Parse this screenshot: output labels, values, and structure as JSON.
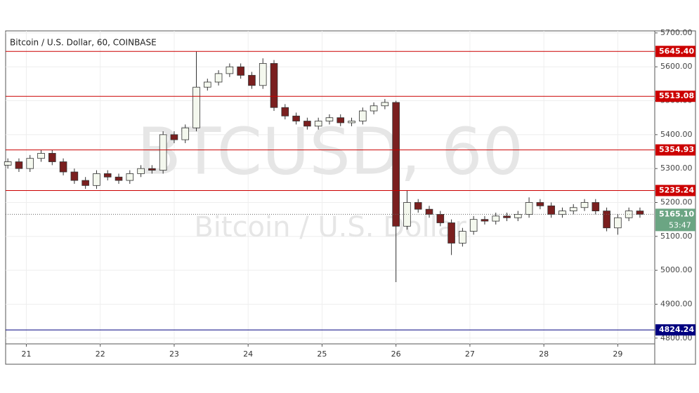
{
  "chart_data": {
    "type": "candlestick",
    "title": "Bitcoin / U.S. Dollar, 60, COINBASE",
    "watermark": "BTCUSD, 60",
    "watermark_sub": "Bitcoin / U.S. Dollar",
    "x": [
      20.75,
      20.9,
      21.05,
      21.2,
      21.35,
      21.5,
      21.65,
      21.8,
      21.95,
      22.1,
      22.25,
      22.4,
      22.55,
      22.7,
      22.85,
      23,
      23.15,
      23.3,
      23.45,
      23.6,
      23.75,
      23.9,
      24.05,
      24.2,
      24.35,
      24.5,
      24.65,
      24.8,
      24.95,
      25.1,
      25.25,
      25.4,
      25.55,
      25.7,
      25.85,
      26,
      26.15,
      26.3,
      26.45,
      26.6,
      26.75,
      26.9,
      27.05,
      27.2,
      27.35,
      27.5,
      27.65,
      27.8,
      27.95,
      28.1,
      28.25,
      28.4,
      28.55,
      28.7,
      28.85,
      29,
      29.15,
      29.3
    ],
    "open": [
      5310,
      5320,
      5300,
      5330,
      5345,
      5320,
      5290,
      5265,
      5250,
      5285,
      5275,
      5265,
      5285,
      5300,
      5295,
      5400,
      5385,
      5420,
      5540,
      5555,
      5580,
      5600,
      5575,
      5545,
      5610,
      5480,
      5455,
      5440,
      5425,
      5440,
      5450,
      5435,
      5440,
      5470,
      5485,
      5495,
      5130,
      5200,
      5180,
      5165,
      5140,
      5080,
      5115,
      5150,
      5145,
      5160,
      5155,
      5165,
      5200,
      5190,
      5165,
      5175,
      5185,
      5200,
      5175,
      5125,
      5155,
      5175
    ],
    "high": [
      5330,
      5330,
      5340,
      5355,
      5355,
      5330,
      5300,
      5275,
      5295,
      5295,
      5285,
      5295,
      5310,
      5310,
      5410,
      5410,
      5430,
      5645,
      5565,
      5590,
      5610,
      5610,
      5585,
      5625,
      5620,
      5490,
      5465,
      5450,
      5450,
      5460,
      5460,
      5450,
      5480,
      5495,
      5505,
      5500,
      5235,
      5210,
      5190,
      5175,
      5150,
      5125,
      5160,
      5160,
      5170,
      5170,
      5175,
      5215,
      5210,
      5200,
      5185,
      5195,
      5210,
      5210,
      5185,
      5165,
      5185,
      5185
    ],
    "low": [
      5300,
      5290,
      5290,
      5320,
      5310,
      5280,
      5255,
      5240,
      5240,
      5265,
      5255,
      5255,
      5275,
      5285,
      5285,
      5375,
      5375,
      5410,
      5530,
      5545,
      5570,
      5565,
      5535,
      5535,
      5470,
      5445,
      5430,
      5415,
      5415,
      5430,
      5425,
      5425,
      5430,
      5460,
      5475,
      4965,
      5120,
      5170,
      5155,
      5130,
      5045,
      5070,
      5105,
      5135,
      5135,
      5145,
      5145,
      5155,
      5180,
      5155,
      5155,
      5165,
      5175,
      5165,
      5115,
      5105,
      5145,
      5155
    ],
    "close": [
      5320,
      5300,
      5330,
      5345,
      5320,
      5290,
      5265,
      5250,
      5285,
      5275,
      5265,
      5285,
      5300,
      5295,
      5400,
      5385,
      5420,
      5540,
      5555,
      5580,
      5600,
      5575,
      5545,
      5610,
      5480,
      5455,
      5440,
      5425,
      5440,
      5450,
      5435,
      5440,
      5470,
      5485,
      5495,
      5130,
      5200,
      5180,
      5165,
      5140,
      5080,
      5115,
      5150,
      5145,
      5160,
      5155,
      5165,
      5200,
      5190,
      5165,
      5175,
      5185,
      5200,
      5175,
      5125,
      5155,
      5175,
      5165.1
    ],
    "up_color": "#f4f8ee",
    "down_color": "#7a1f1f",
    "wick_color": "#333333",
    "xlim": [
      20.72,
      29.5
    ],
    "xticks": [
      21,
      22,
      23,
      24,
      25,
      26,
      27,
      28,
      29
    ],
    "ylim": [
      4783,
      5706
    ],
    "yticks": [
      {
        "value": 4800,
        "label": "4800.00"
      },
      {
        "value": 4900,
        "label": "4900.00"
      },
      {
        "value": 5000,
        "label": "5000.00"
      },
      {
        "value": 5100,
        "label": "5100.00"
      },
      {
        "value": 5200,
        "label": "5200.00"
      },
      {
        "value": 5300,
        "label": "5300.00"
      },
      {
        "value": 5400,
        "label": "5400.00"
      },
      {
        "value": 5500,
        "label": "5500.00"
      },
      {
        "value": 5600,
        "label": "5600.00"
      },
      {
        "value": 5700,
        "label": "5700.00"
      }
    ],
    "grid": true,
    "hlines": [
      {
        "value": 5645.4,
        "label": "5645.40",
        "color": "#cc0000"
      },
      {
        "value": 5513.08,
        "label": "5513.08",
        "color": "#cc0000"
      },
      {
        "value": 5354.93,
        "label": "5354.93",
        "color": "#cc0000"
      },
      {
        "value": 5235.24,
        "label": "5235.24",
        "color": "#cc0000"
      },
      {
        "value": 4824.24,
        "label": "4824.24",
        "color": "#000080"
      }
    ],
    "last_price": {
      "value": 5165.1,
      "label": "5165.10",
      "color": "#6ba583"
    },
    "countdown": "53:47"
  }
}
